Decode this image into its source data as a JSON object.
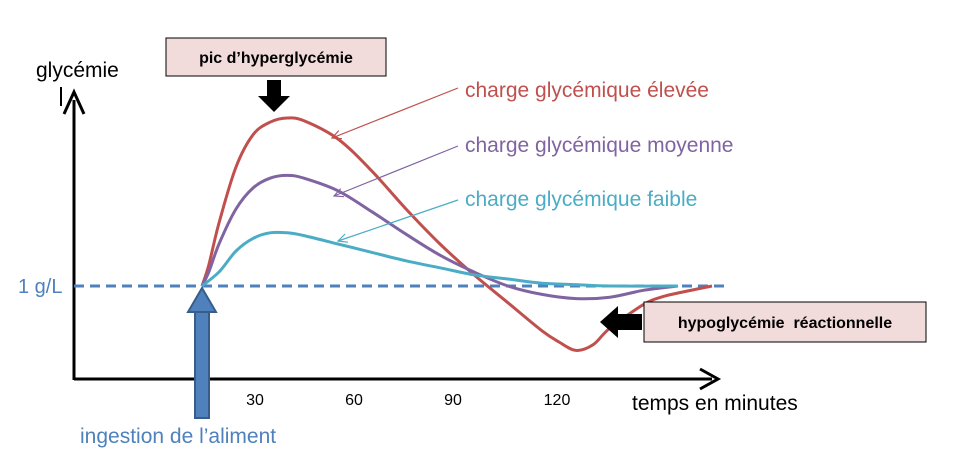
{
  "chart_data": {
    "type": "line",
    "ylabel": "glycémie",
    "xlabel": "temps en minutes",
    "x_ticks": [
      "30",
      "60",
      "90",
      "120"
    ],
    "baseline_label": "1 g/L",
    "baseline_color": "#4f81bd",
    "ingestion_label": "ingestion de l’aliment",
    "peak_label": "pic d’hyperglycémie",
    "hypo_label": "hypoglycémie  réactionnelle",
    "callout_fill": "#f2dcdb",
    "series": [
      {
        "name": "charge glycémique élevée",
        "color": "#c0504d",
        "points": [
          [
            10,
            1.0
          ],
          [
            12,
            1.15
          ],
          [
            15,
            1.45
          ],
          [
            20,
            1.85
          ],
          [
            25,
            2.08
          ],
          [
            30,
            2.17
          ],
          [
            35,
            2.2
          ],
          [
            40,
            2.18
          ],
          [
            50,
            2.05
          ],
          [
            60,
            1.82
          ],
          [
            70,
            1.55
          ],
          [
            80,
            1.3
          ],
          [
            90,
            1.08
          ],
          [
            100,
            0.88
          ],
          [
            110,
            0.68
          ],
          [
            115,
            0.6
          ],
          [
            120,
            0.54
          ],
          [
            125,
            0.58
          ],
          [
            130,
            0.7
          ],
          [
            140,
            0.87
          ],
          [
            145,
            0.92
          ],
          [
            150,
            0.95
          ],
          [
            160,
            1.0
          ]
        ]
      },
      {
        "name": "charge glycémique moyenne",
        "color": "#8064a2",
        "points": [
          [
            10,
            1.0
          ],
          [
            12,
            1.1
          ],
          [
            15,
            1.3
          ],
          [
            20,
            1.55
          ],
          [
            25,
            1.7
          ],
          [
            30,
            1.77
          ],
          [
            35,
            1.79
          ],
          [
            40,
            1.77
          ],
          [
            50,
            1.68
          ],
          [
            60,
            1.53
          ],
          [
            70,
            1.37
          ],
          [
            80,
            1.22
          ],
          [
            90,
            1.1
          ],
          [
            100,
            1.0
          ],
          [
            110,
            0.94
          ],
          [
            120,
            0.91
          ],
          [
            130,
            0.92
          ],
          [
            140,
            0.97
          ],
          [
            150,
            1.0
          ]
        ]
      },
      {
        "name": "charge glycémique faible",
        "color": "#4bacc6",
        "points": [
          [
            10,
            1.0
          ],
          [
            15,
            1.1
          ],
          [
            20,
            1.25
          ],
          [
            25,
            1.34
          ],
          [
            30,
            1.38
          ],
          [
            35,
            1.38
          ],
          [
            40,
            1.36
          ],
          [
            50,
            1.3
          ],
          [
            60,
            1.24
          ],
          [
            70,
            1.18
          ],
          [
            80,
            1.13
          ],
          [
            90,
            1.08
          ],
          [
            100,
            1.05
          ],
          [
            110,
            1.02
          ],
          [
            120,
            1.01
          ],
          [
            130,
            1.0
          ],
          [
            150,
            1.0
          ]
        ]
      }
    ]
  }
}
